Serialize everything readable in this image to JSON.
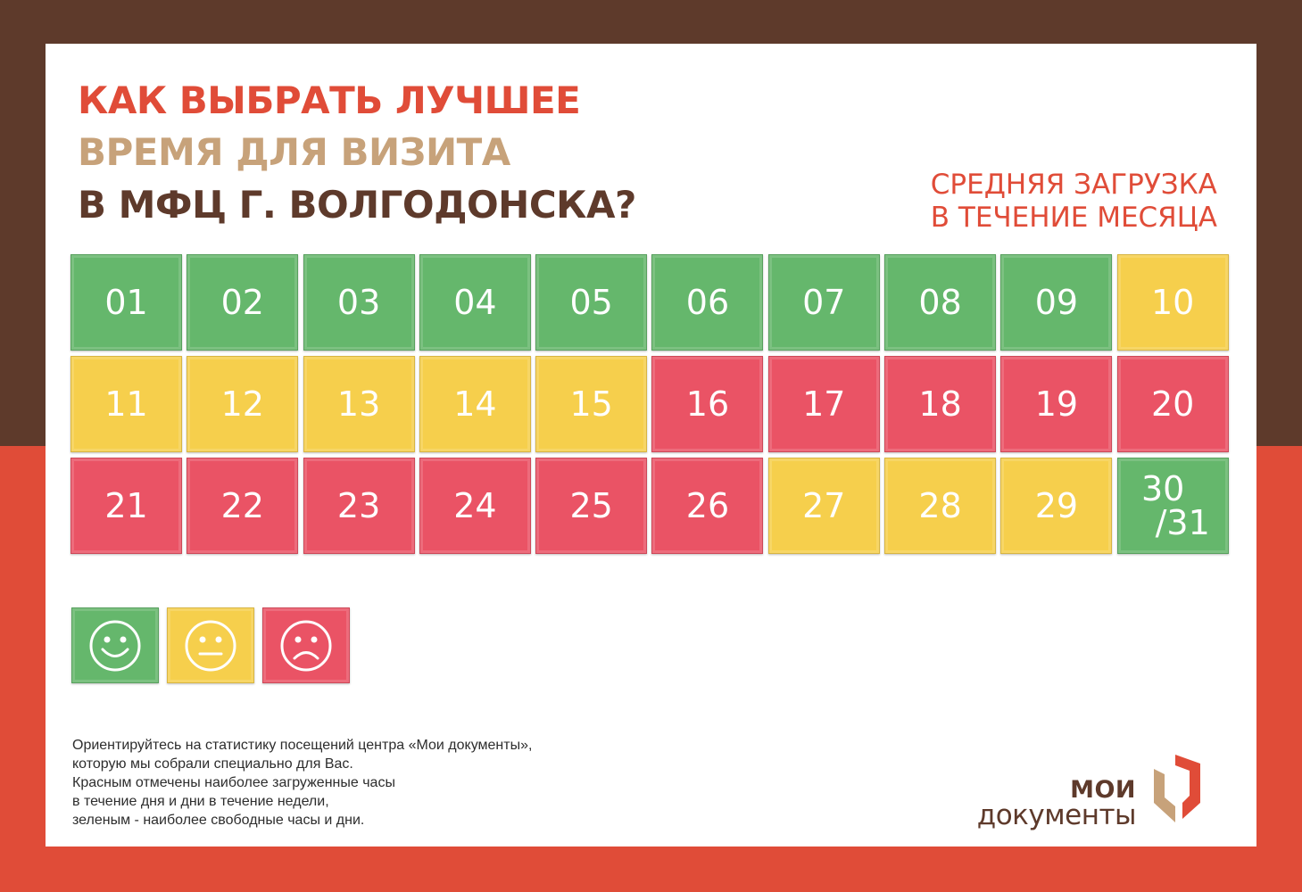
{
  "title": {
    "line1": "КАК ВЫБРАТЬ ЛУЧШЕЕ",
    "line2": "ВРЕМЯ ДЛЯ ВИЗИТА",
    "line3": "В МФЦ Г. ВОЛГОДОНСКА?"
  },
  "subtitle": {
    "line1": "СРЕДНЯЯ ЗАГРУЗКА",
    "line2": "В ТЕЧЕНИЕ МЕСЯЦА"
  },
  "colors": {
    "green": "#65b76c",
    "yellow": "#f6cf4c",
    "red": "#ea5365",
    "brown": "#5e3a2b",
    "orange_red": "#e04c38",
    "tan": "#c7a27a"
  },
  "days": [
    {
      "label": "01",
      "load": "low"
    },
    {
      "label": "02",
      "load": "low"
    },
    {
      "label": "03",
      "load": "low"
    },
    {
      "label": "04",
      "load": "low"
    },
    {
      "label": "05",
      "load": "low"
    },
    {
      "label": "06",
      "load": "low"
    },
    {
      "label": "07",
      "load": "low"
    },
    {
      "label": "08",
      "load": "low"
    },
    {
      "label": "09",
      "load": "low"
    },
    {
      "label": "10",
      "load": "medium"
    },
    {
      "label": "11",
      "load": "medium"
    },
    {
      "label": "12",
      "load": "medium"
    },
    {
      "label": "13",
      "load": "medium"
    },
    {
      "label": "14",
      "load": "medium"
    },
    {
      "label": "15",
      "load": "medium"
    },
    {
      "label": "16",
      "load": "high"
    },
    {
      "label": "17",
      "load": "high"
    },
    {
      "label": "18",
      "load": "high"
    },
    {
      "label": "19",
      "load": "high"
    },
    {
      "label": "20",
      "load": "high"
    },
    {
      "label": "21",
      "load": "high"
    },
    {
      "label": "22",
      "load": "high"
    },
    {
      "label": "23",
      "load": "high"
    },
    {
      "label": "24",
      "load": "high"
    },
    {
      "label": "25",
      "load": "high"
    },
    {
      "label": "26",
      "load": "high"
    },
    {
      "label": "27",
      "load": "medium"
    },
    {
      "label": "28",
      "load": "medium"
    },
    {
      "label": "29",
      "load": "medium"
    },
    {
      "label": "30/31",
      "top": "30",
      "bottom": "/31",
      "load": "low"
    }
  ],
  "legend": [
    {
      "icon": "smiling-face-icon",
      "load": "low"
    },
    {
      "icon": "neutral-face-icon",
      "load": "medium"
    },
    {
      "icon": "sad-face-icon",
      "load": "high"
    }
  ],
  "info": {
    "line1": "Ориентируйтесь на статистику посещений центра «Мои документы»,",
    "line2": "которую мы собрали специально для Вас.",
    "line3": "Красным отмечены наиболее загруженные часы",
    "line4": "в течение дня и дни в течение недели,",
    "line5": "зеленым - наиболее свободные часы и дни."
  },
  "logo": {
    "line1": "МОИ",
    "line2": "документы"
  }
}
